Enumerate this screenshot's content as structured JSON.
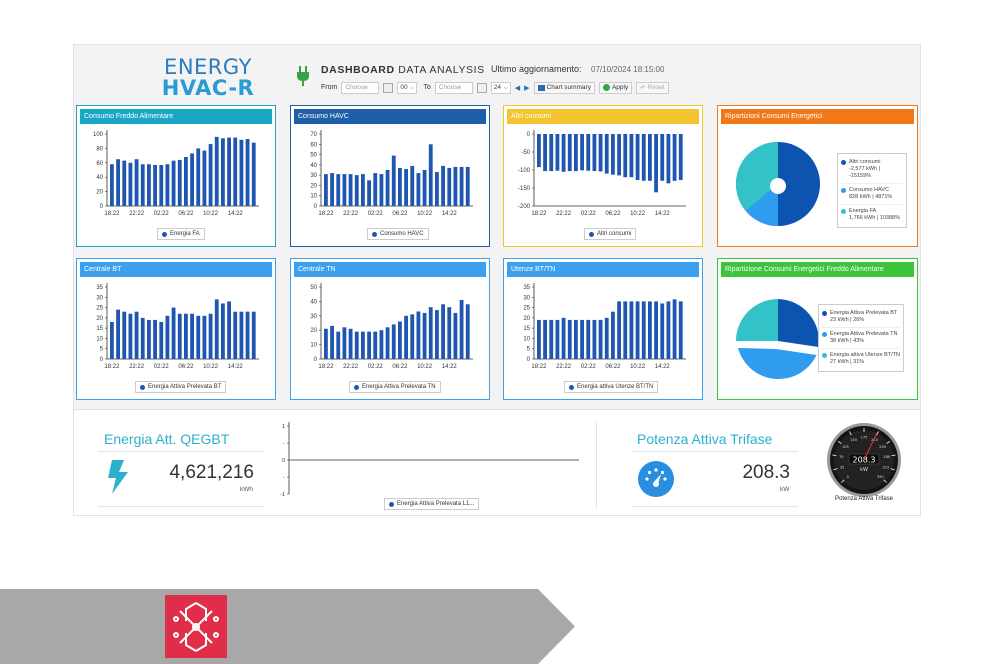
{
  "header": {
    "logo_line1": "ENERGY",
    "logo_line2": "HVAC-R",
    "title_bold": "DASHBOARD",
    "title_rest": "DATA ANALYSIS",
    "update_label": "Ultimo aggiornamento:",
    "update_value": "07/10/2024 18:15:00",
    "filters": {
      "from_label": "From",
      "to_label": "To",
      "from_placeholder": "Choose",
      "to_placeholder": "Choose",
      "from_hour": "00",
      "to_hour": "24",
      "chart_summary_label": "Chart summary",
      "apply_label": "Apply",
      "reset_label": "Reset"
    }
  },
  "cards": [
    {
      "id": "freddo",
      "title": "Consumo Freddo Alimentare",
      "color": "#19a7c5",
      "legend": "Energia FA"
    },
    {
      "id": "havc",
      "title": "Consumo HAVC",
      "color": "#1f5ea8",
      "legend": "Consumo HAVC"
    },
    {
      "id": "altri",
      "title": "Altri consumi",
      "color": "#f4c430",
      "legend": "Altri consumi"
    },
    {
      "id": "ripartizioni",
      "title": "Ripartizioni Consumi Energetici",
      "color": "#f07818"
    },
    {
      "id": "centrale-bt",
      "title": "Centrale BT",
      "color": "#3da0ef",
      "legend": "Energia Attiva Prelevata BT"
    },
    {
      "id": "centrale-tn",
      "title": "Centrale TN",
      "color": "#3da0ef",
      "legend": "Energia Attiva Prelevata TN"
    },
    {
      "id": "utenze",
      "title": "Utenze BT/TN",
      "color": "#3da0ef",
      "legend": "Energia attiva Utenze BT/TN"
    },
    {
      "id": "ripartizione-fa",
      "title": "Ripartizione Consumi Energetici Freddo Alimentare",
      "color": "#3cc43c"
    }
  ],
  "pie1": {
    "items": [
      {
        "label": "Altri consumi",
        "value": "-2,577 kWh | -15159%",
        "color": "#0d54b0"
      },
      {
        "label": "Consumo HAVC",
        "value": "828 kWh | 4871%",
        "color": "#2f9cf0"
      },
      {
        "label": "Energia FA",
        "value": "1,766 kWh | 10388%",
        "color": "#33c2c8"
      }
    ]
  },
  "pie2": {
    "items": [
      {
        "label": "Energia Attiva Prelevata BT",
        "value": "23 kWh | 26%",
        "color": "#0d54b0"
      },
      {
        "label": "Energia Attiva Prelevata TN",
        "value": "38 kWh | 43%",
        "color": "#2f9cf0"
      },
      {
        "label": "Energia attiva Utenze BT/TN",
        "value": "27 kWh | 31%",
        "color": "#33c2c8"
      }
    ]
  },
  "bottom": {
    "kpi1": {
      "title": "Energia Att. QEGBT",
      "value": "4,621,216",
      "unit": "kWh"
    },
    "kpi2": {
      "title": "Potenza Attiva Trifase",
      "value": "208.3",
      "unit": "kW"
    },
    "empty_chart_legend": "Energia Attiva Prelevata L1...",
    "gauge": {
      "value": "208.3",
      "unit": "kW",
      "label": "Potenza Attiva Trifase",
      "ticks": [
        "0",
        "35",
        "70",
        "105",
        "140",
        "175",
        "210",
        "245",
        "280",
        "315",
        "350"
      ]
    }
  },
  "chart_data": [
    {
      "type": "bar",
      "name": "Energia FA",
      "categories": [
        "18:22",
        "19:22",
        "20:22",
        "21:22",
        "22:22",
        "23:22",
        "00:22",
        "01:22",
        "02:22",
        "03:22",
        "04:22",
        "05:22",
        "06:22",
        "07:22",
        "08:22",
        "09:22",
        "10:22",
        "11:22",
        "12:22",
        "13:22",
        "14:22",
        "15:22",
        "16:22",
        "17:22"
      ],
      "x_ticks": [
        "18:22",
        "22:22",
        "02:22",
        "06:22",
        "10:22",
        "14:22"
      ],
      "values": [
        58,
        65,
        63,
        60,
        65,
        58,
        58,
        57,
        57,
        58,
        63,
        64,
        68,
        73,
        80,
        77,
        86,
        96,
        94,
        95,
        95,
        92,
        93,
        88
      ],
      "ylim": [
        0,
        100
      ],
      "y_ticks": [
        0,
        20,
        40,
        60,
        80,
        100
      ]
    },
    {
      "type": "bar",
      "name": "Consumo HAVC",
      "categories": [
        "18:22",
        "19:22",
        "20:22",
        "21:22",
        "22:22",
        "23:22",
        "00:22",
        "01:22",
        "02:22",
        "03:22",
        "04:22",
        "05:22",
        "06:22",
        "07:22",
        "08:22",
        "09:22",
        "10:22",
        "11:22",
        "12:22",
        "13:22",
        "14:22",
        "15:22",
        "16:22",
        "17:22"
      ],
      "x_ticks": [
        "18:22",
        "22:22",
        "02:22",
        "06:22",
        "10:22",
        "14:22"
      ],
      "values": [
        31,
        32,
        31,
        31,
        31,
        30,
        31,
        25,
        32,
        31,
        35,
        49,
        37,
        36,
        39,
        32,
        35,
        60,
        33,
        39,
        37,
        38,
        38,
        38
      ],
      "ylim": [
        0,
        70
      ],
      "y_ticks": [
        0,
        10,
        20,
        30,
        40,
        50,
        60,
        70
      ]
    },
    {
      "type": "bar",
      "name": "Altri consumi",
      "categories": [
        "18:22",
        "19:22",
        "20:22",
        "21:22",
        "22:22",
        "23:22",
        "00:22",
        "01:22",
        "02:22",
        "03:22",
        "04:22",
        "05:22",
        "06:22",
        "07:22",
        "08:22",
        "09:22",
        "10:22",
        "11:22",
        "12:22",
        "13:22",
        "14:22",
        "15:22",
        "16:22",
        "17:22"
      ],
      "x_ticks": [
        "18:22",
        "22:22",
        "02:22",
        "06:22",
        "10:22",
        "14:22"
      ],
      "values": [
        -92,
        -103,
        -103,
        -102,
        -105,
        -103,
        -103,
        -101,
        -102,
        -103,
        -104,
        -110,
        -113,
        -115,
        -120,
        -120,
        -128,
        -130,
        -130,
        -162,
        -130,
        -137,
        -130,
        -128
      ],
      "ylim": [
        -200,
        0
      ],
      "y_ticks": [
        0,
        -50,
        -100,
        -150,
        -200
      ]
    },
    {
      "type": "pie",
      "name": "Ripartizioni Consumi Energetici",
      "labels": [
        "Altri consumi",
        "Consumo HAVC",
        "Energia FA"
      ],
      "values": [
        -2577,
        828,
        1766
      ]
    },
    {
      "type": "bar",
      "name": "Energia Attiva Prelevata BT",
      "categories": [
        "18:22",
        "19:22",
        "20:22",
        "21:22",
        "22:22",
        "23:22",
        "00:22",
        "01:22",
        "02:22",
        "03:22",
        "04:22",
        "05:22",
        "06:22",
        "07:22",
        "08:22",
        "09:22",
        "10:22",
        "11:22",
        "12:22",
        "13:22",
        "14:22",
        "15:22",
        "16:22",
        "17:22"
      ],
      "x_ticks": [
        "18:22",
        "22:22",
        "02:22",
        "06:22",
        "10:22",
        "14:22"
      ],
      "values": [
        18,
        24,
        23,
        22,
        23,
        20,
        19,
        19,
        18,
        21,
        25,
        22,
        22,
        22,
        21,
        21,
        22,
        29,
        27,
        28,
        23,
        23,
        23,
        23
      ],
      "ylim": [
        0,
        35
      ],
      "y_ticks": [
        0,
        5,
        10,
        15,
        20,
        25,
        30,
        35
      ]
    },
    {
      "type": "bar",
      "name": "Energia Attiva Prelevata TN",
      "categories": [
        "18:22",
        "19:22",
        "20:22",
        "21:22",
        "22:22",
        "23:22",
        "00:22",
        "01:22",
        "02:22",
        "03:22",
        "04:22",
        "05:22",
        "06:22",
        "07:22",
        "08:22",
        "09:22",
        "10:22",
        "11:22",
        "12:22",
        "13:22",
        "14:22",
        "15:22",
        "16:22",
        "17:22"
      ],
      "x_ticks": [
        "18:22",
        "22:22",
        "02:22",
        "06:22",
        "10:22",
        "14:22"
      ],
      "values": [
        21,
        23,
        19,
        22,
        21,
        19,
        19,
        19,
        19,
        20,
        22,
        24,
        26,
        30,
        31,
        33,
        32,
        36,
        34,
        38,
        36,
        32,
        41,
        38
      ],
      "ylim": [
        0,
        50
      ],
      "y_ticks": [
        0,
        10,
        20,
        30,
        40,
        50
      ]
    },
    {
      "type": "bar",
      "name": "Energia attiva Utenze BT/TN",
      "categories": [
        "18:22",
        "19:22",
        "20:22",
        "21:22",
        "22:22",
        "23:22",
        "00:22",
        "01:22",
        "02:22",
        "03:22",
        "04:22",
        "05:22",
        "06:22",
        "07:22",
        "08:22",
        "09:22",
        "10:22",
        "11:22",
        "12:22",
        "13:22",
        "14:22",
        "15:22",
        "16:22",
        "17:22"
      ],
      "x_ticks": [
        "18:22",
        "22:22",
        "02:22",
        "06:22",
        "10:22",
        "14:22"
      ],
      "values": [
        19,
        19,
        19,
        19,
        20,
        19,
        19,
        19,
        19,
        19,
        19,
        20,
        23,
        28,
        28,
        28,
        28,
        28,
        28,
        28,
        27,
        28,
        29,
        28
      ],
      "ylim": [
        0,
        35
      ],
      "y_ticks": [
        0,
        5,
        10,
        15,
        20,
        25,
        30,
        35
      ]
    },
    {
      "type": "pie",
      "name": "Ripartizione Consumi Energetici Freddo Alimentare",
      "labels": [
        "Energia Attiva Prelevata BT",
        "Energia Attiva Prelevata TN",
        "Energia attiva Utenze BT/TN"
      ],
      "values": [
        23,
        38,
        27
      ]
    },
    {
      "type": "line",
      "name": "Energia Attiva Prelevata L1...",
      "x": [],
      "y": [],
      "ylim": [
        -1,
        1
      ],
      "y_ticks": [
        1,
        0.5,
        0,
        -0.5,
        -1
      ]
    }
  ]
}
